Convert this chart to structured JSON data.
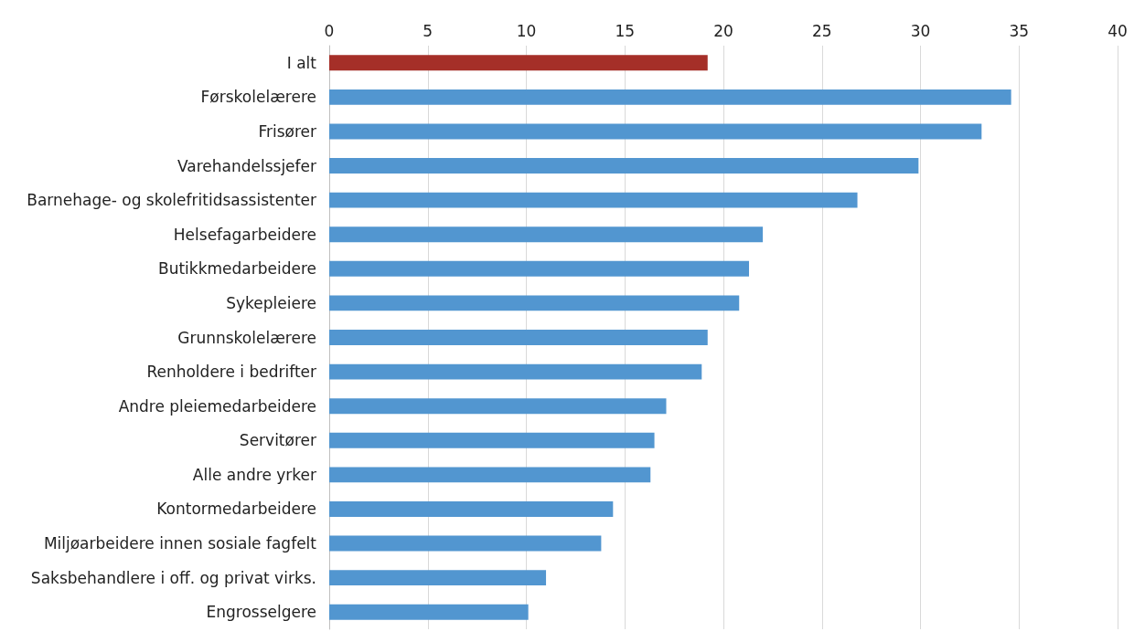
{
  "chart_data": {
    "type": "bar",
    "orientation": "horizontal",
    "categories": [
      "I alt",
      "Førskolelærere",
      "Frisører",
      "Varehandelssjefer",
      "Barnehage- og skolefritidsassistenter",
      "Helsefagarbeidere",
      "Butikkmedarbeidere",
      "Sykepleiere",
      "Grunnskolelærere",
      "Renholdere i bedrifter",
      "Andre pleiemedarbeidere",
      "Servitører",
      "Alle andre yrker",
      "Kontormedarbeidere",
      "Miljøarbeidere innen sosiale fagfelt",
      "Saksbehandlere i off. og privat virks.",
      "Engrosselgere"
    ],
    "values": [
      19.2,
      34.6,
      33.1,
      29.9,
      26.8,
      22.0,
      21.3,
      20.8,
      19.2,
      18.9,
      17.1,
      16.5,
      16.3,
      14.4,
      13.8,
      11.0,
      10.1
    ],
    "colors": [
      "#a52f28",
      "#5296d0",
      "#5296d0",
      "#5296d0",
      "#5296d0",
      "#5296d0",
      "#5296d0",
      "#5296d0",
      "#5296d0",
      "#5296d0",
      "#5296d0",
      "#5296d0",
      "#5296d0",
      "#5296d0",
      "#5296d0",
      "#5296d0",
      "#5296d0"
    ],
    "xlim": [
      0,
      40
    ],
    "xticks": [
      0,
      5,
      10,
      15,
      20,
      25,
      30,
      35,
      40
    ],
    "grid": "x"
  }
}
